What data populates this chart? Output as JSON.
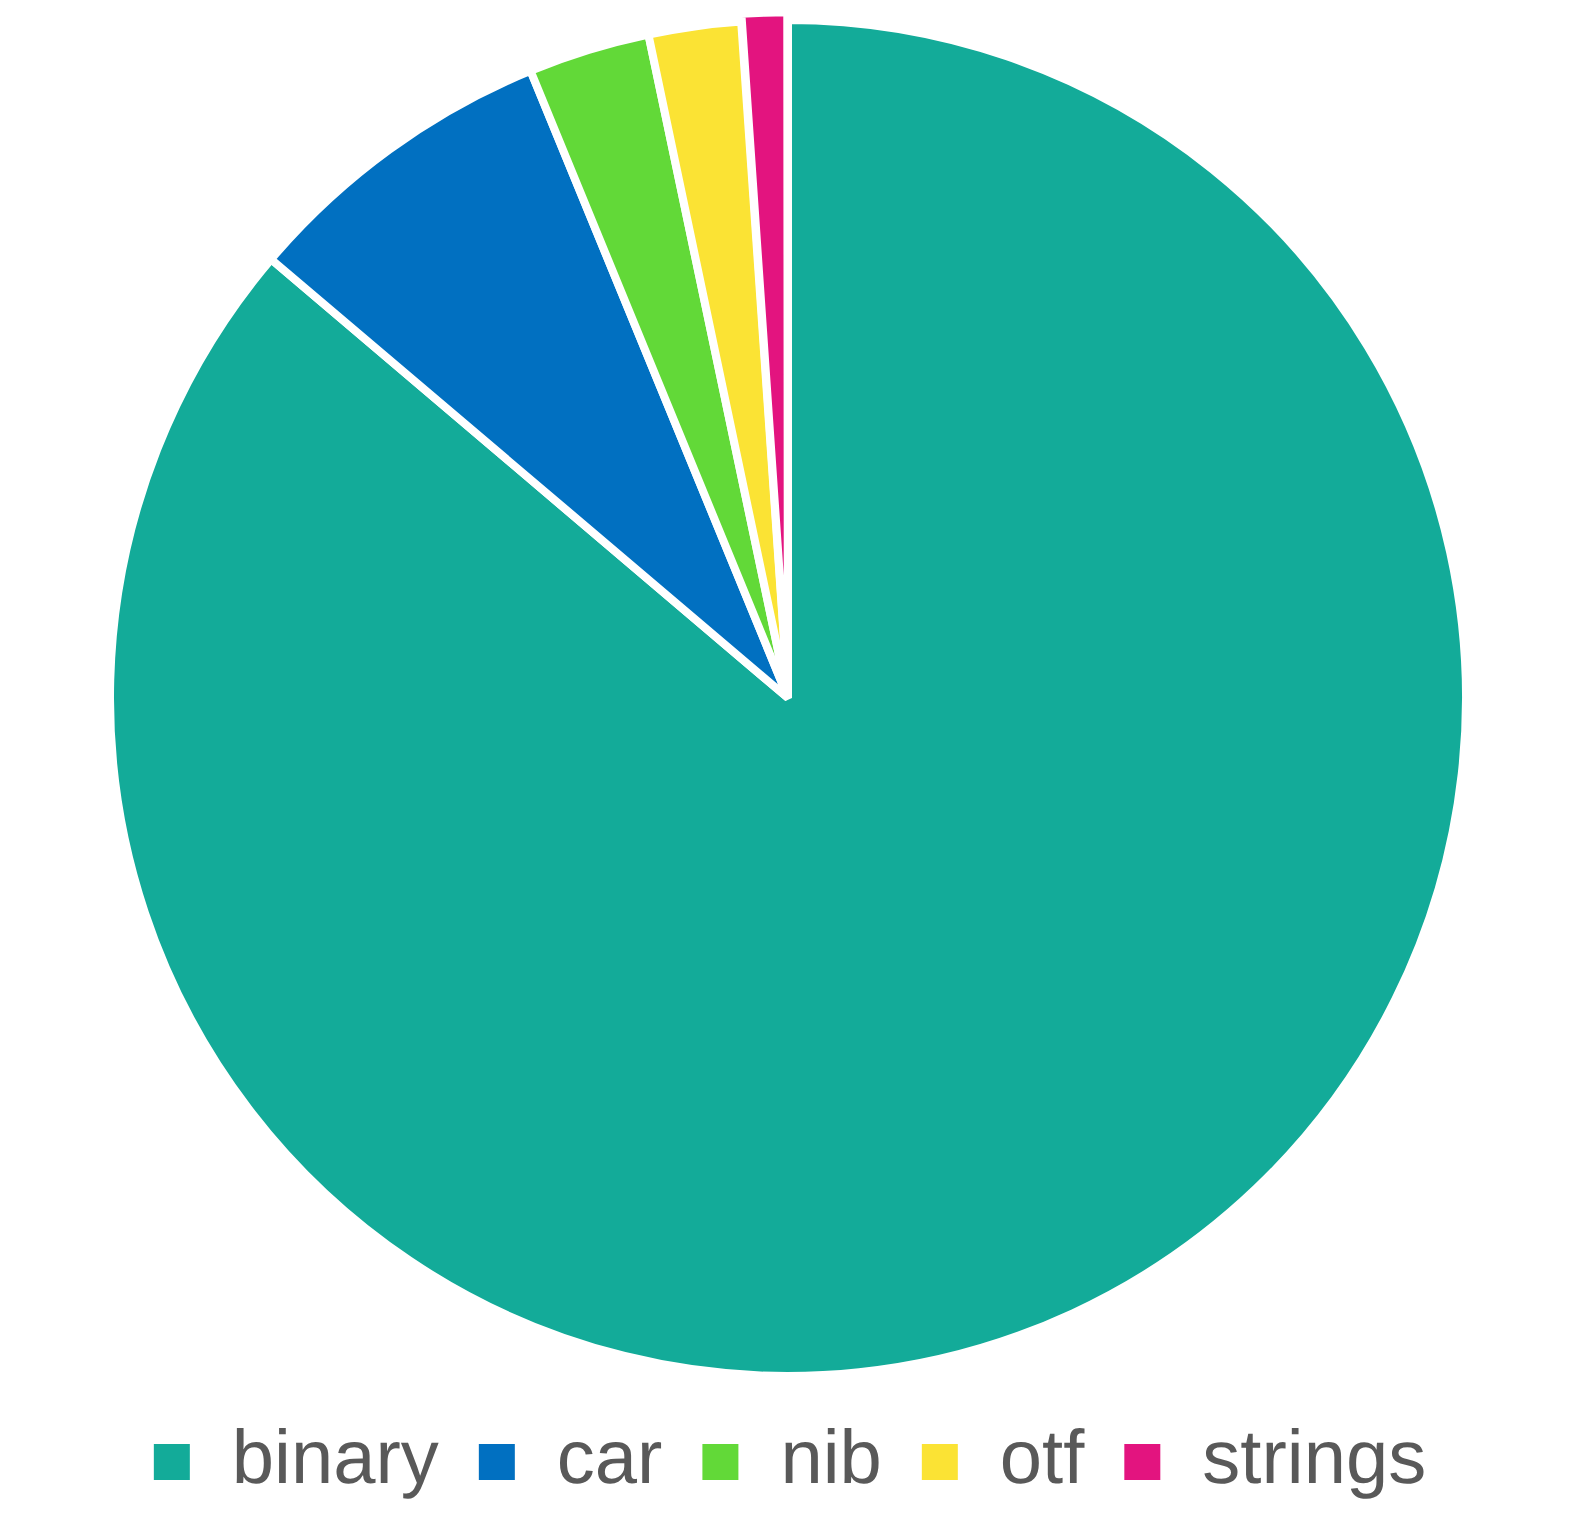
{
  "chart_data": {
    "type": "pie",
    "categories": [
      "binary",
      "car",
      "nib",
      "otf",
      "strings"
    ],
    "values": [
      86.2,
      7.6,
      2.9,
      2.2,
      1.1
    ],
    "colors": [
      "#13ab99",
      "#0170c1",
      "#62d938",
      "#fbe334",
      "#e3147f"
    ],
    "legend": "bottom"
  }
}
